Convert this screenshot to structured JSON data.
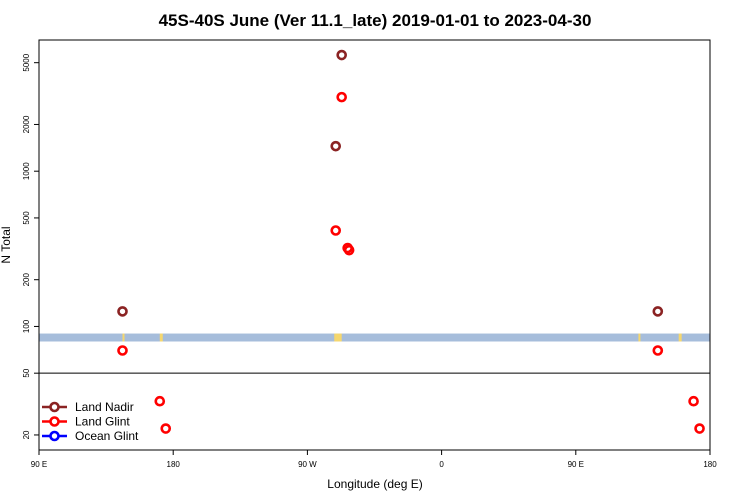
{
  "chart_data": {
    "type": "scatter",
    "title": "45S-40S June (Ver 11.1_late)   2019-01-01 to 2023-04-30",
    "xlabel": "Longitude (deg E)",
    "ylabel": "N Total",
    "x_ticks": [
      {
        "value": 90,
        "label": "90 E"
      },
      {
        "value": 180,
        "label": "180"
      },
      {
        "value": 270,
        "label": "90 W"
      },
      {
        "value": 360,
        "label": "0"
      },
      {
        "value": 450,
        "label": "90 E"
      },
      {
        "value": 540,
        "label": "180"
      }
    ],
    "xlim": [
      90,
      540
    ],
    "y_scale": "log",
    "ylim": [
      16,
      7000
    ],
    "y_ticks": [
      {
        "value": 20,
        "label": "20"
      },
      {
        "value": 50,
        "label": "50"
      },
      {
        "value": 100,
        "label": "100"
      },
      {
        "value": 200,
        "label": "200"
      },
      {
        "value": 500,
        "label": "500"
      },
      {
        "value": 1000,
        "label": "1000"
      },
      {
        "value": 2000,
        "label": "2000"
      },
      {
        "value": 5000,
        "label": "5000"
      }
    ],
    "separator_y": 50,
    "map_band": {
      "y_min": 80,
      "y_max": 90,
      "ocean_color": "#a6bddb",
      "land_color": "#f5d76e"
    },
    "map_land_spans": [
      [
        146,
        147
      ],
      [
        171,
        173
      ],
      [
        288,
        293
      ],
      [
        492,
        493
      ],
      [
        519,
        521
      ]
    ],
    "series": [
      {
        "name": "Land Nadir",
        "color": "#8b2323",
        "points": [
          [
            146,
            125
          ],
          [
            293,
            5600
          ],
          [
            289,
            1450
          ],
          [
            505,
            125
          ]
        ]
      },
      {
        "name": "Land Glint",
        "color": "#ff0000",
        "points": [
          [
            146,
            70
          ],
          [
            171,
            33
          ],
          [
            175,
            22
          ],
          [
            293,
            3000
          ],
          [
            289,
            415
          ],
          [
            297,
            320
          ],
          [
            298,
            310
          ],
          [
            505,
            70
          ],
          [
            529,
            33
          ],
          [
            533,
            22
          ]
        ]
      },
      {
        "name": "Ocean Glint",
        "color": "#0000ff",
        "points": []
      }
    ],
    "legend_position": "bottom-left",
    "grid": false
  }
}
